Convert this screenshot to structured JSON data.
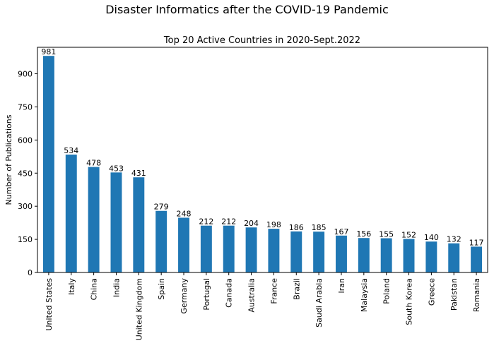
{
  "figure": {
    "suptitle": "Disaster Informatics after the COVID-19 Pandemic"
  },
  "chart_data": {
    "type": "bar",
    "title": "Top 20 Active Countries in 2020-Sept.2022",
    "xlabel": "",
    "ylabel": "Number of Publications",
    "ylim": [
      0,
      1020
    ],
    "yticks": [
      0,
      150,
      300,
      450,
      600,
      750,
      900
    ],
    "grid": false,
    "bar_color": "#1f77b4",
    "categories": [
      "United States",
      "Italy",
      "China",
      "India",
      "United Kingdom",
      "Spain",
      "Germany",
      "Portugal",
      "Canada",
      "Australia",
      "France",
      "Brazil",
      "Saudi Arabia",
      "Iran",
      "Malaysia",
      "Poland",
      "South Korea",
      "Greece",
      "Pakistan",
      "Romania"
    ],
    "values": [
      981,
      534,
      478,
      453,
      431,
      279,
      248,
      212,
      212,
      204,
      198,
      186,
      185,
      167,
      156,
      155,
      152,
      140,
      132,
      117
    ]
  }
}
